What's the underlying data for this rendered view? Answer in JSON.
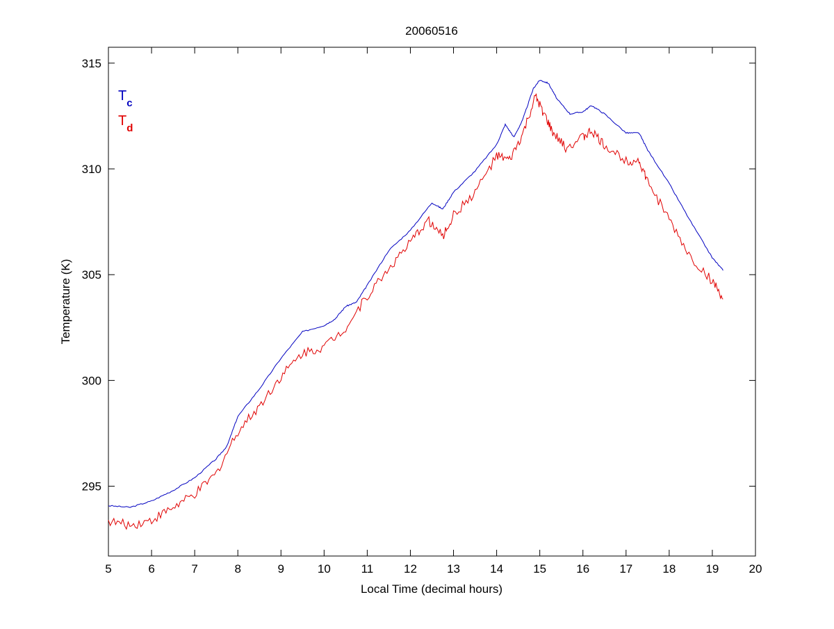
{
  "chart_data": {
    "type": "line",
    "title": "20060516",
    "xlabel": "Local Time (decimal hours)",
    "ylabel": "Temperature (K)",
    "xlim": [
      5,
      20
    ],
    "ylim": [
      291.7,
      315.75
    ],
    "xticks": [
      5,
      6,
      7,
      8,
      9,
      10,
      11,
      12,
      13,
      14,
      15,
      16,
      17,
      18,
      19,
      20
    ],
    "yticks": [
      295,
      300,
      305,
      310,
      315
    ],
    "grid": false,
    "legend": {
      "placement": "top-left",
      "entries": [
        {
          "main": "T",
          "sub": "c",
          "color": "#0000c0"
        },
        {
          "main": "T",
          "sub": "d",
          "color": "#e00000"
        }
      ]
    },
    "series": [
      {
        "name": "Tc",
        "color": "#0000c0",
        "x": [
          5.0,
          5.5,
          6.0,
          6.5,
          7.0,
          7.5,
          7.75,
          8.0,
          8.5,
          9.0,
          9.5,
          10.0,
          10.25,
          10.5,
          10.75,
          11.0,
          11.5,
          12.0,
          12.5,
          12.75,
          13.0,
          13.5,
          14.0,
          14.2,
          14.4,
          14.6,
          14.85,
          15.0,
          15.2,
          15.4,
          15.7,
          16.0,
          16.2,
          16.5,
          17.0,
          17.3,
          17.5,
          18.0,
          18.5,
          19.0,
          19.25
        ],
        "y": [
          294.08,
          294.0,
          294.3,
          294.8,
          295.4,
          296.3,
          296.9,
          298.3,
          299.6,
          301.05,
          302.3,
          302.6,
          302.9,
          303.5,
          303.7,
          304.5,
          306.15,
          307.1,
          308.4,
          308.1,
          308.9,
          309.9,
          311.15,
          312.1,
          311.5,
          312.3,
          313.8,
          314.2,
          314.05,
          313.3,
          312.6,
          312.7,
          313.0,
          312.6,
          311.7,
          311.7,
          310.9,
          309.3,
          307.5,
          305.8,
          305.2
        ]
      },
      {
        "name": "Td",
        "color": "#e00000",
        "x": [
          5.0,
          5.5,
          6.0,
          6.5,
          7.0,
          7.5,
          8.0,
          8.5,
          9.0,
          9.5,
          10.0,
          10.5,
          11.0,
          11.5,
          12.0,
          12.4,
          12.75,
          13.0,
          13.5,
          14.0,
          14.3,
          14.6,
          14.9,
          15.1,
          15.3,
          15.6,
          16.0,
          16.2,
          16.5,
          17.0,
          17.3,
          17.5,
          18.0,
          18.5,
          19.0,
          19.25
        ],
        "y": [
          293.35,
          293.15,
          293.4,
          294.0,
          294.6,
          295.6,
          297.6,
          298.8,
          300.2,
          301.3,
          301.6,
          302.5,
          304.0,
          305.3,
          306.5,
          307.6,
          306.8,
          307.8,
          308.9,
          310.6,
          310.4,
          311.6,
          313.4,
          312.6,
          311.7,
          311.0,
          311.5,
          311.8,
          311.1,
          310.4,
          310.4,
          309.4,
          307.6,
          305.8,
          304.7,
          303.85
        ]
      }
    ]
  }
}
